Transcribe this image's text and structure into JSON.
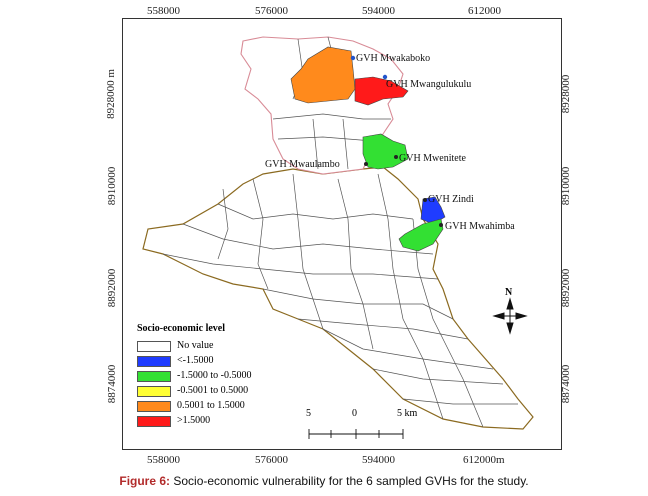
{
  "axes": {
    "top_x": [
      "558000",
      "576000",
      "594000",
      "612000"
    ],
    "bottom_x": [
      "558000",
      "576000",
      "594000",
      "612000m"
    ],
    "left_y": [
      "8928000 m",
      "8910000",
      "8892000",
      "8874000"
    ],
    "right_y": [
      "8928000",
      "8910000",
      "8892000",
      "8874000"
    ]
  },
  "gvh_labels": [
    "GVH Mwakaboko",
    "GVH Mwangulukulu",
    "GVH Mwenitete",
    "GVH Mwaulambo",
    "GVH Zindi",
    "GVH Mwahimba"
  ],
  "legend": {
    "title": "Socio-economic level",
    "items": [
      {
        "label": "No value",
        "color": "#ffffff"
      },
      {
        "label": "<-1.5000",
        "color": "#1f3cff"
      },
      {
        "label": "-1.5000 to -0.5000",
        "color": "#33e033"
      },
      {
        "label": "-0.5001 to 0.5000",
        "color": "#ffff33"
      },
      {
        "label": "0.5001 to 1.5000",
        "color": "#ff8a1c"
      },
      {
        "label": ">1.5000",
        "color": "#ff1a1a"
      }
    ]
  },
  "north_label": "N",
  "scale": {
    "left": "5",
    "mid": "0",
    "right": "5 km"
  },
  "caption": {
    "prefix": "Figure 6:",
    "text": " Socio-economic vulnerability for the 6 sampled GVHs for the study."
  }
}
